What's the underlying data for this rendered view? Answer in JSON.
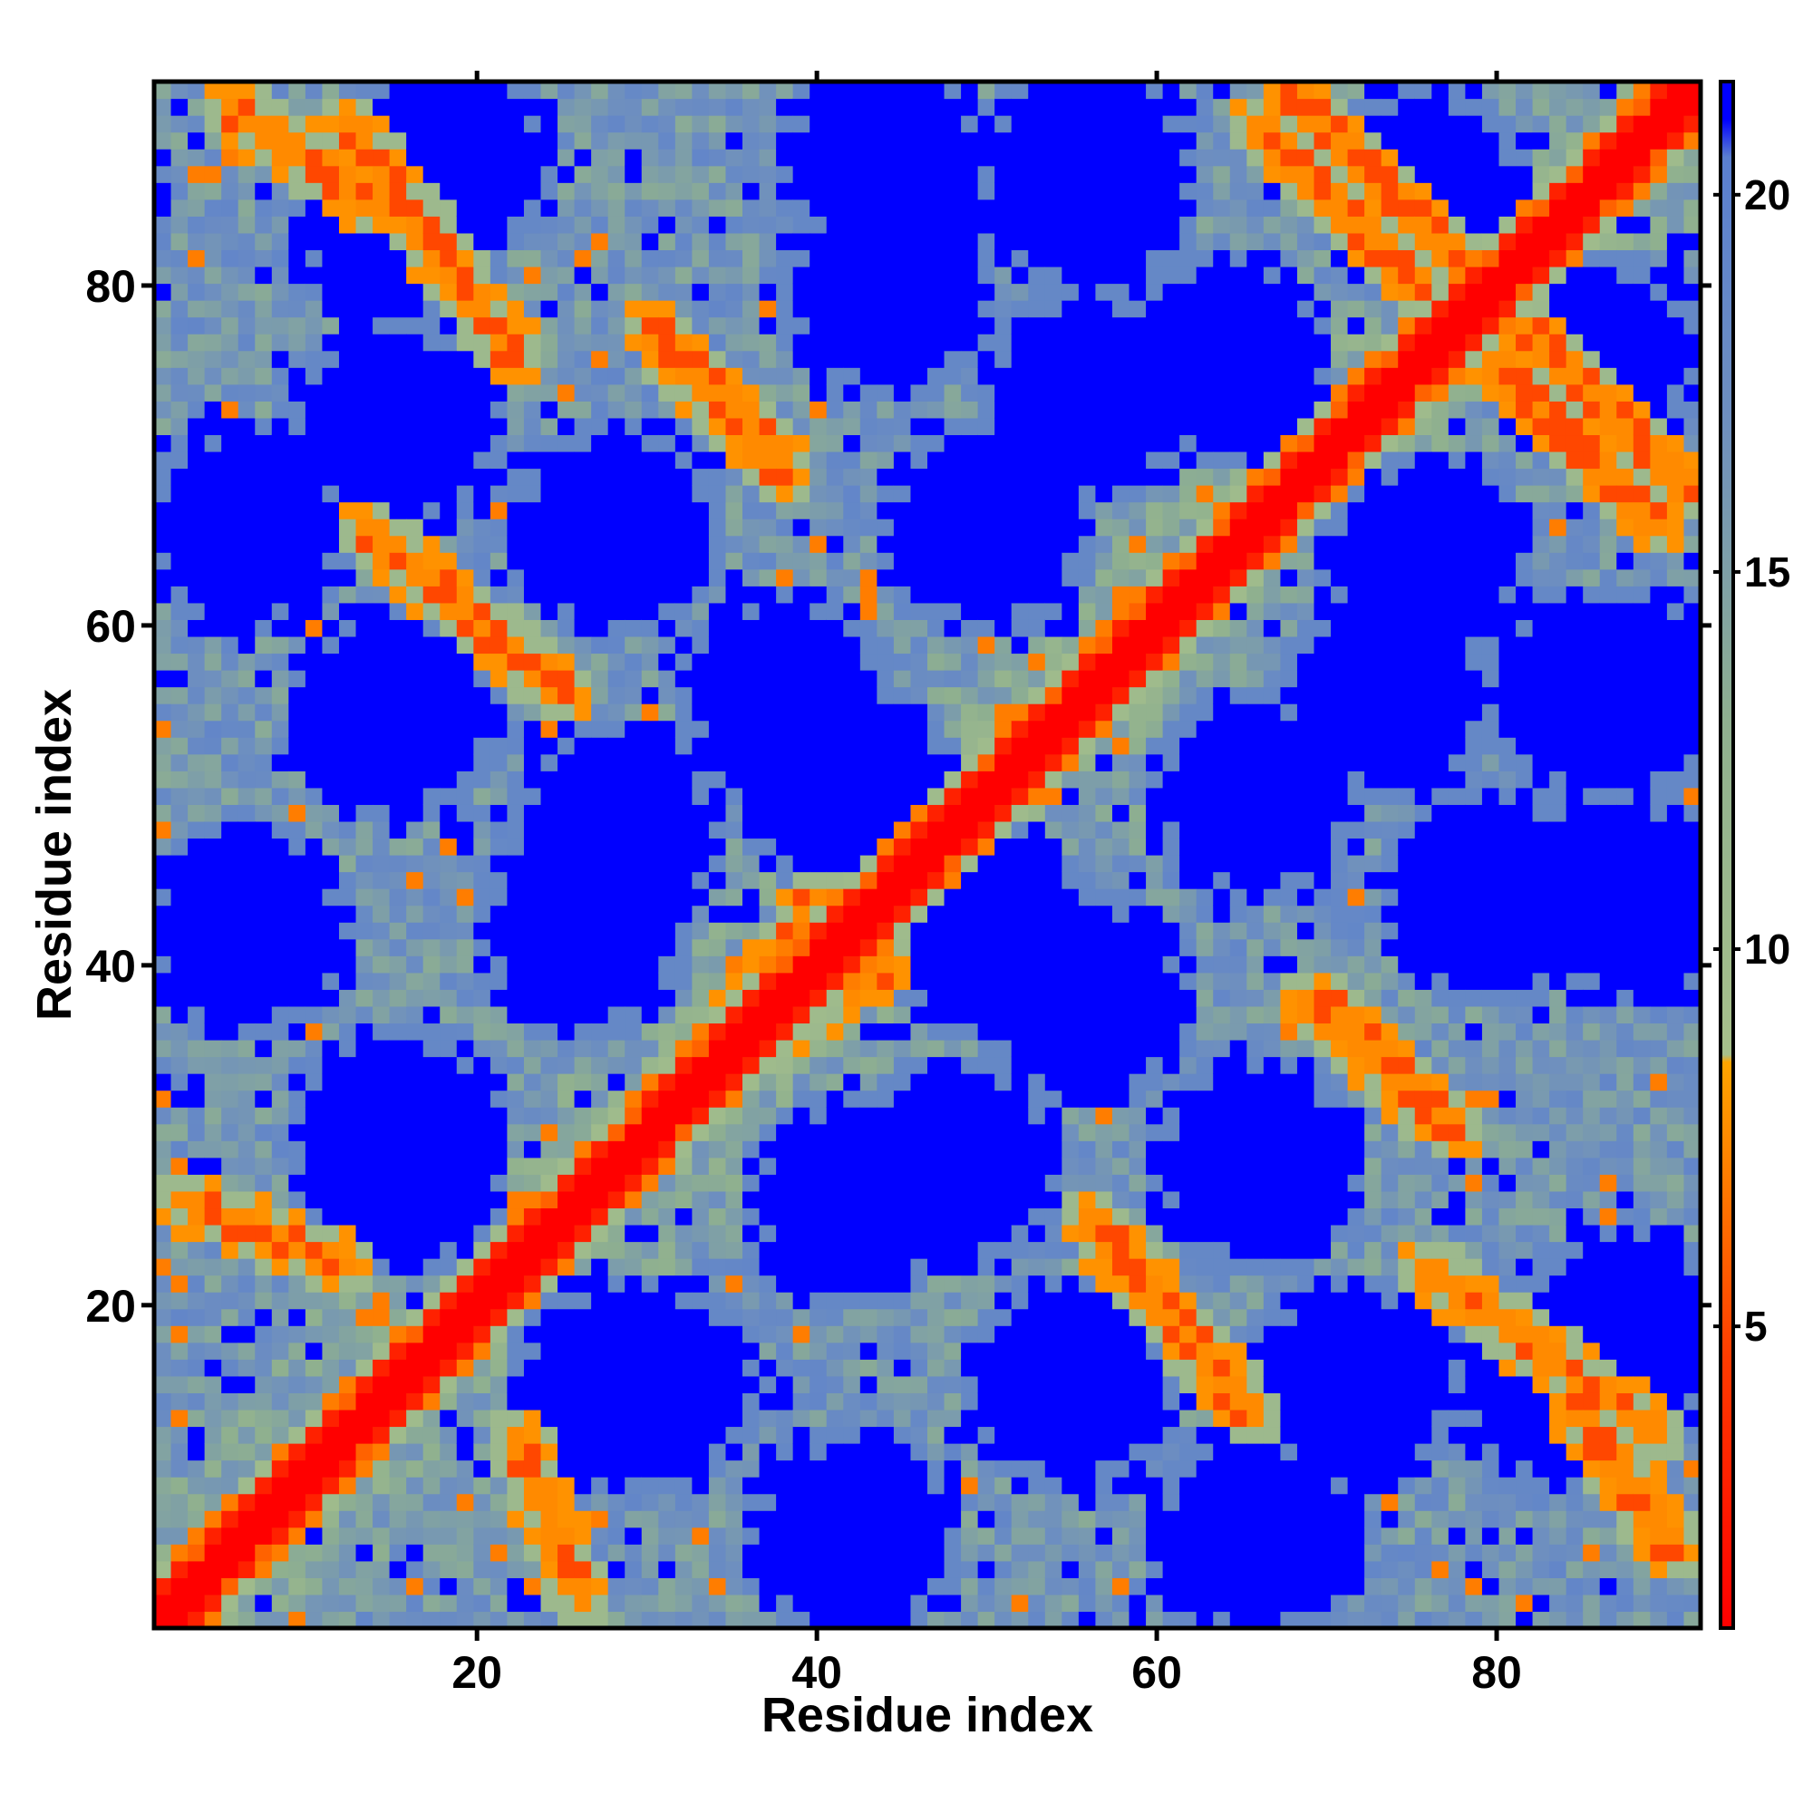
{
  "chart_data": {
    "type": "heatmap",
    "title": "",
    "xlabel": "Residue index",
    "ylabel": "Residue index",
    "n_residues": 92,
    "xlim": [
      1,
      92
    ],
    "ylim": [
      1,
      92
    ],
    "x_ticks": [
      20,
      40,
      60,
      80
    ],
    "y_ticks": [
      20,
      40,
      60,
      80
    ],
    "grid": false,
    "colorbar": {
      "placement": "right",
      "ticks": [
        5,
        10,
        15,
        20
      ],
      "range": [
        1,
        21.5
      ],
      "color_stops": [
        {
          "value": 1,
          "color": "#ff0000"
        },
        {
          "value": 4.5,
          "color": "#ff3a00"
        },
        {
          "value": 8.5,
          "color": "#ffa500"
        },
        {
          "value": 8.6,
          "color": "#a7c08b"
        },
        {
          "value": 13,
          "color": "#8fb08f"
        },
        {
          "value": 17,
          "color": "#6e8fbf"
        },
        {
          "value": 20.5,
          "color": "#5a7fd0"
        },
        {
          "value": 21,
          "color": "#0000ff"
        },
        {
          "value": 21.5,
          "color": "#0000ff"
        }
      ]
    },
    "structure": {
      "description_free": true,
      "main_diagonal": true,
      "antidiagonal_contacts": [
        {
          "x": [
            2,
            12
          ],
          "y": [
            22,
            26
          ]
        },
        {
          "x": [
            12,
            22
          ],
          "y": [
            76,
            90
          ]
        },
        {
          "x": [
            13,
            25
          ],
          "y": [
            56,
            66
          ]
        },
        {
          "x": [
            30,
            38
          ],
          "y": [
            70,
            78
          ]
        },
        {
          "x": [
            57,
            65
          ],
          "y": [
            14,
            24
          ]
        },
        {
          "x": [
            69,
            78
          ],
          "y": [
            30,
            38
          ]
        },
        {
          "x": [
            68,
            78
          ],
          "y": [
            82,
            92
          ]
        },
        {
          "x": [
            80,
            90
          ],
          "y": [
            66,
            76
          ]
        },
        {
          "x": [
            85,
            91
          ],
          "y": [
            5,
            14
          ]
        }
      ],
      "parallel_contacts": [
        {
          "x": [
            35,
            40
          ],
          "y": [
            36,
            44
          ]
        },
        {
          "x": [
            63,
            70
          ],
          "y": [
            62,
            70
          ]
        }
      ],
      "far_regions_centers": [
        [
          15,
          30
        ],
        [
          15,
          55
        ],
        [
          15,
          72
        ],
        [
          15,
          84
        ],
        [
          28,
          15
        ],
        [
          28,
          48
        ],
        [
          28,
          66
        ],
        [
          42,
          6
        ],
        [
          42,
          26
        ],
        [
          42,
          50
        ],
        [
          44,
          80
        ],
        [
          56,
          38
        ],
        [
          56,
          74
        ],
        [
          56,
          86
        ],
        [
          66,
          6
        ],
        [
          66,
          28
        ],
        [
          66,
          50
        ],
        [
          76,
          64
        ],
        [
          76,
          86
        ],
        [
          88,
          18
        ],
        [
          88,
          44
        ],
        [
          88,
          56
        ]
      ]
    }
  }
}
